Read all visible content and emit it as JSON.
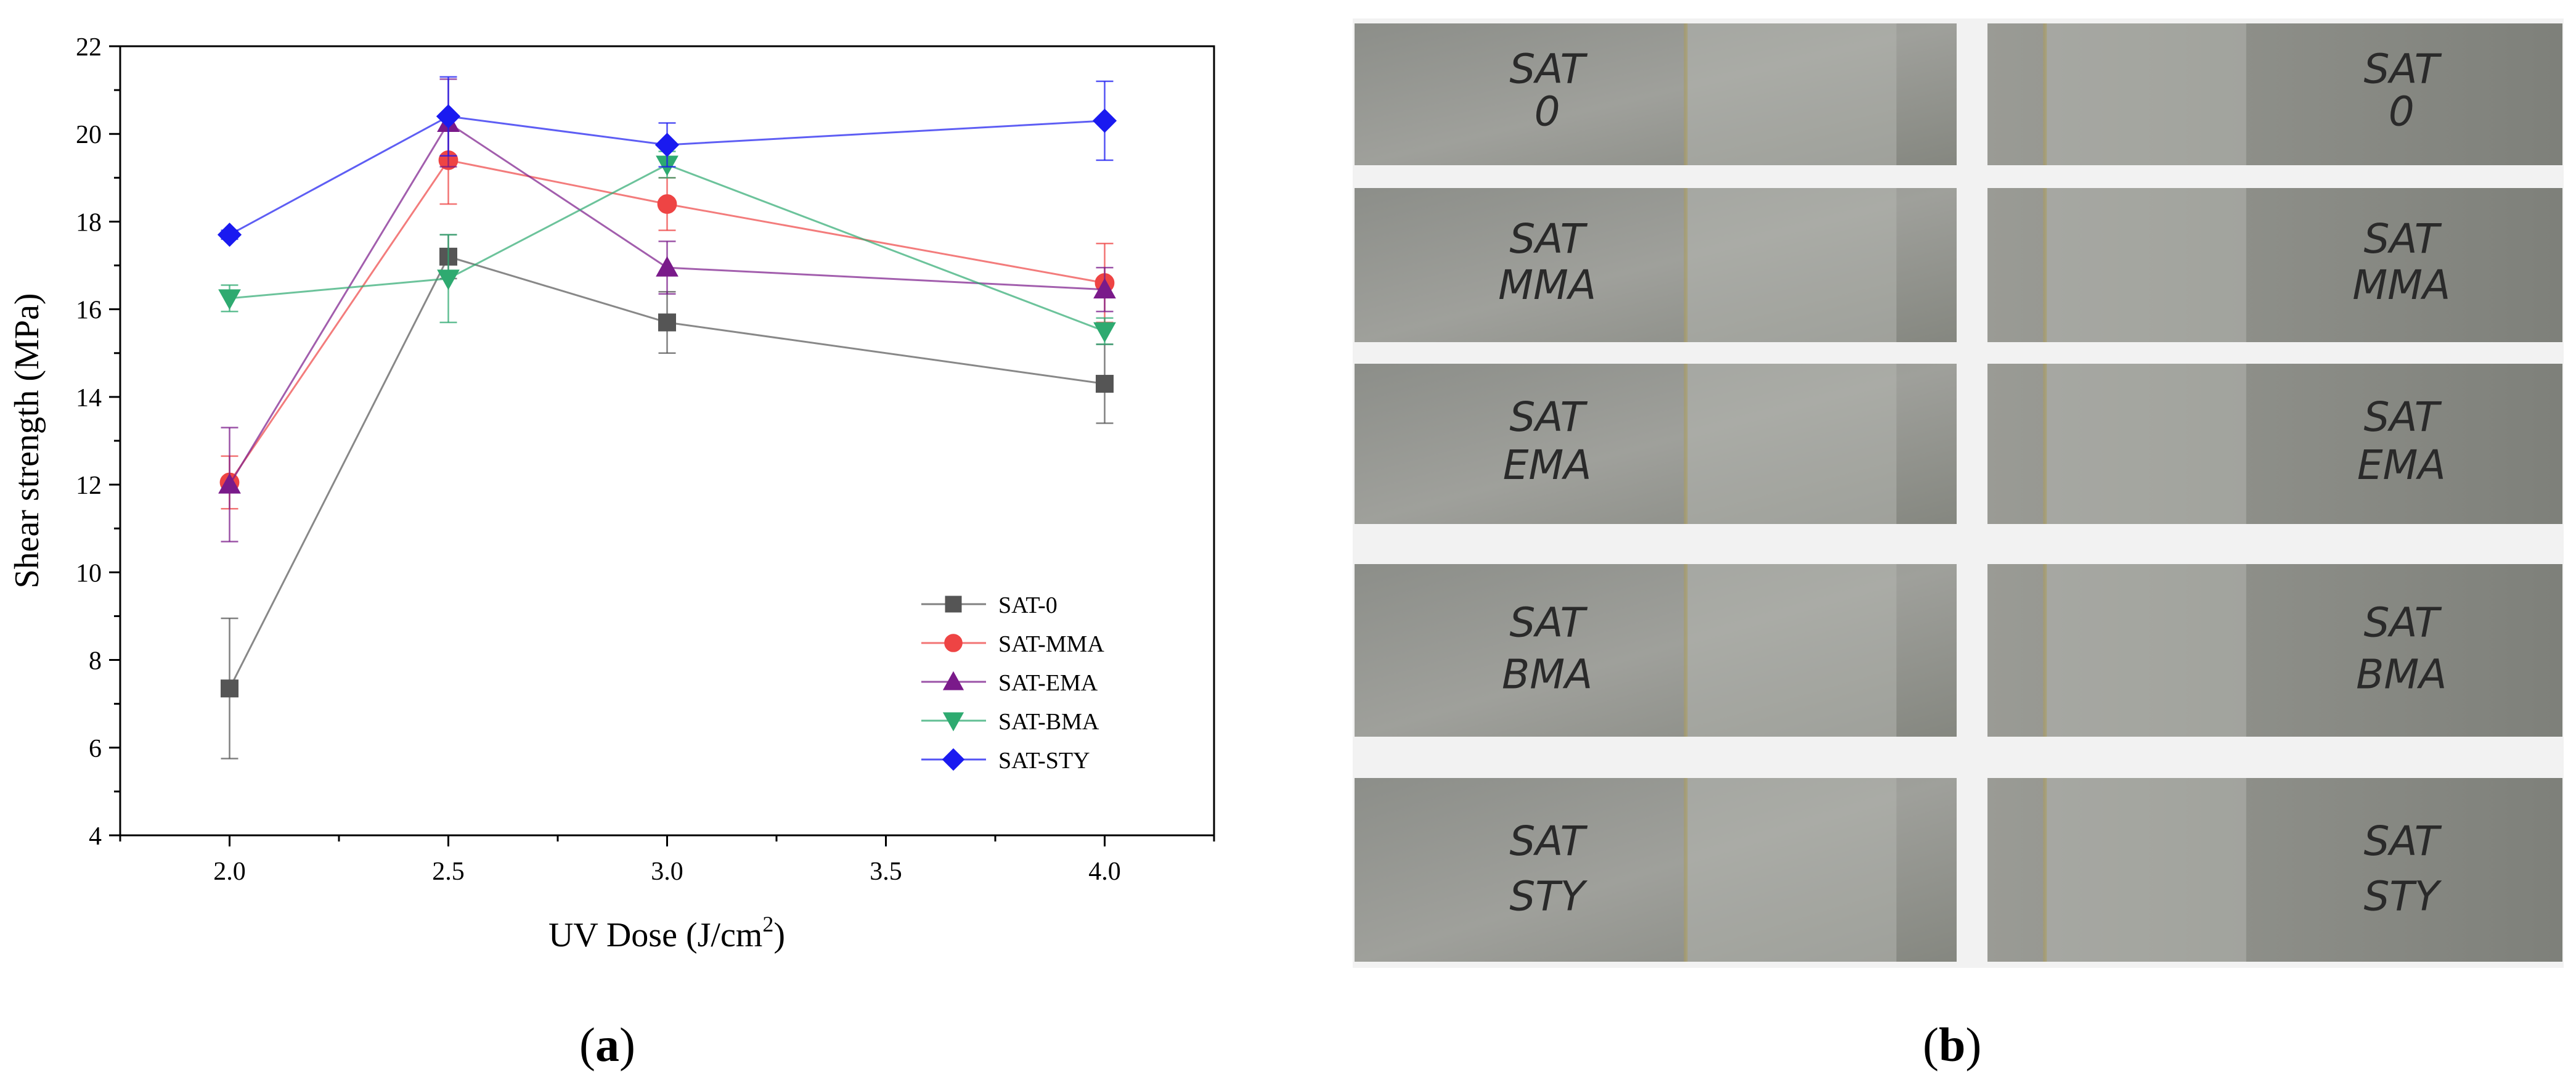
{
  "chart_data": {
    "type": "line",
    "xlabel_prefix": "UV Dose (J/cm",
    "xlabel_sup": "2",
    "xlabel_suffix": ")",
    "ylabel": "Shear strength (MPa)",
    "xlim": [
      1.75,
      4.25
    ],
    "ylim": [
      4,
      22
    ],
    "x_ticks": [
      "2.0",
      "2.5",
      "3.0",
      "3.5",
      "4.0"
    ],
    "y_ticks": [
      "4",
      "6",
      "8",
      "10",
      "12",
      "14",
      "16",
      "18",
      "20",
      "22"
    ],
    "x": [
      2.0,
      2.5,
      3.0,
      4.0
    ],
    "legend_position": "lower-right",
    "grid": false,
    "series": [
      {
        "name": "SAT-0",
        "color": "#555555",
        "marker": "square",
        "values": [
          7.35,
          17.2,
          15.7,
          14.3
        ],
        "errors": [
          1.6,
          0.5,
          0.7,
          0.9
        ]
      },
      {
        "name": "SAT-MMA",
        "color": "#ee4444",
        "marker": "circle",
        "values": [
          12.05,
          19.4,
          18.4,
          16.6
        ],
        "errors": [
          0.6,
          1.0,
          0.6,
          0.9
        ]
      },
      {
        "name": "SAT-EMA",
        "color": "#7a1a8a",
        "marker": "triangle-up",
        "values": [
          12.0,
          20.25,
          16.95,
          16.45
        ],
        "errors": [
          1.3,
          1.0,
          0.6,
          0.5
        ]
      },
      {
        "name": "SAT-BMA",
        "color": "#2eaa70",
        "marker": "triangle-down",
        "values": [
          16.25,
          16.7,
          19.3,
          15.5
        ],
        "errors": [
          0.3,
          1.0,
          0.3,
          0.3
        ]
      },
      {
        "name": "SAT-STY",
        "color": "#1a1af0",
        "marker": "diamond",
        "values": [
          17.7,
          20.4,
          19.75,
          20.3
        ],
        "errors": [
          0.1,
          0.9,
          0.5,
          0.9
        ]
      }
    ]
  },
  "photo": {
    "rows": [
      {
        "left": [
          "SAT",
          "0"
        ],
        "right": [
          "SAT",
          "0"
        ]
      },
      {
        "left": [
          "SAT",
          "MMA"
        ],
        "right": [
          "SAT",
          "MMA"
        ]
      },
      {
        "left": [
          "SAT",
          "EMA"
        ],
        "right": [
          "SAT",
          "EMA"
        ]
      },
      {
        "left": [
          "SAT",
          "BMA"
        ],
        "right": [
          "SAT",
          "BMA"
        ]
      },
      {
        "left": [
          "SAT",
          "STY"
        ],
        "right": [
          "SAT",
          "STY"
        ]
      }
    ]
  },
  "labels": {
    "a": "a",
    "b": "b"
  }
}
